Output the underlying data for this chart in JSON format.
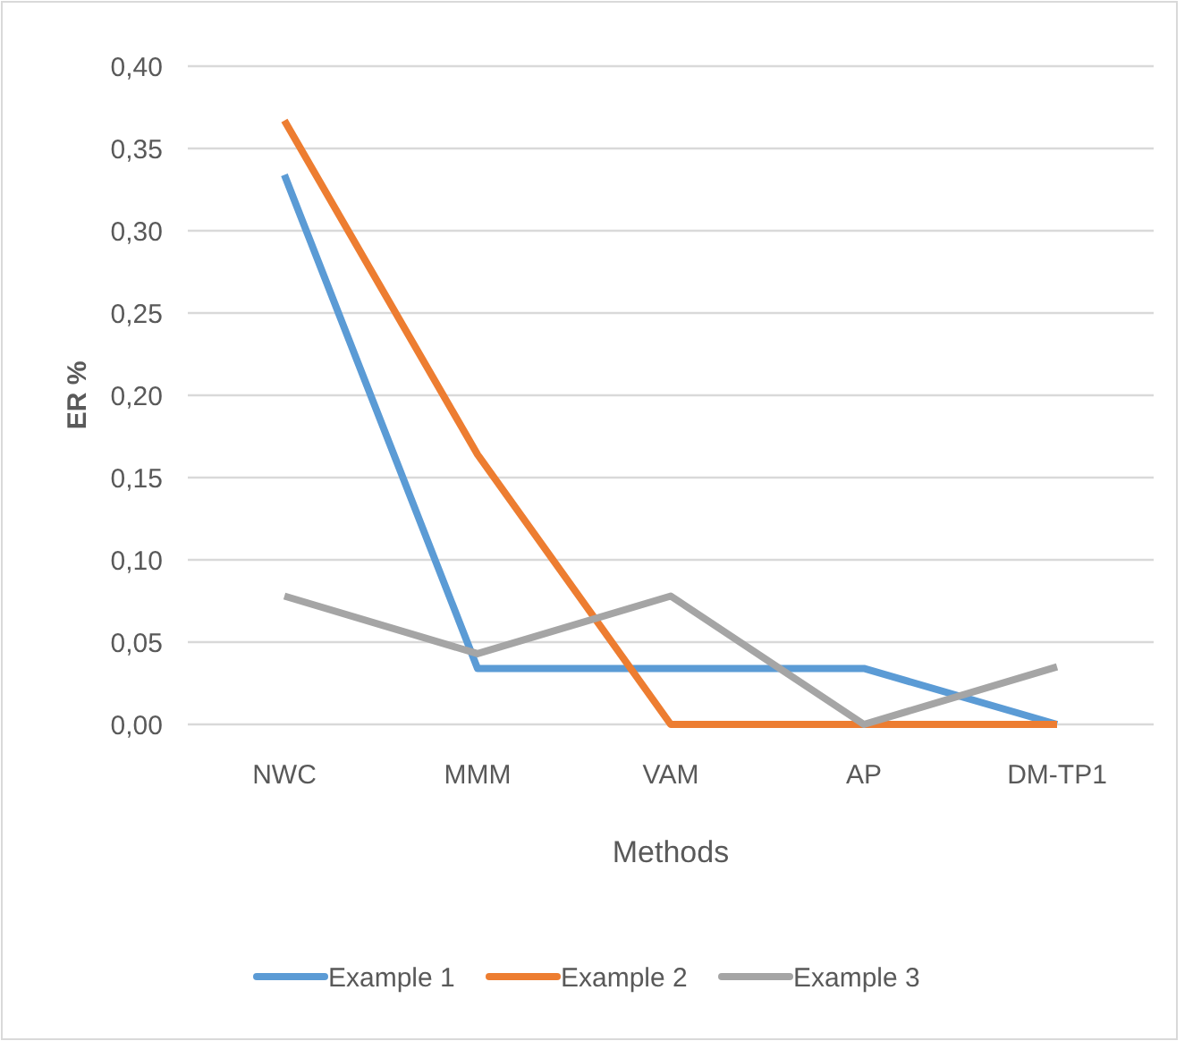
{
  "chart_data": {
    "type": "line",
    "xlabel": "Methods",
    "ylabel": "ER %",
    "categories": [
      "NWC",
      "MMM",
      "VAM",
      "AP",
      "DM-TP1"
    ],
    "series": [
      {
        "name": "Example 1",
        "color": "#5b9bd5",
        "values": [
          0.334,
          0.034,
          0.034,
          0.034,
          0
        ]
      },
      {
        "name": "Example 2",
        "color": "#ed7d31",
        "values": [
          0.367,
          0.164,
          0,
          0,
          0
        ]
      },
      {
        "name": "Example 3",
        "color": "#a5a5a5",
        "values": [
          0.078,
          0.043,
          0.078,
          0,
          0.035
        ]
      }
    ],
    "ylim": [
      0,
      0.4
    ],
    "yticks": [
      {
        "value": 0,
        "label": "0,00"
      },
      {
        "value": 0.05,
        "label": "0,05"
      },
      {
        "value": 0.1,
        "label": "0,10"
      },
      {
        "value": 0.15,
        "label": "0,15"
      },
      {
        "value": 0.2,
        "label": "0,20"
      },
      {
        "value": 0.25,
        "label": "0,25"
      },
      {
        "value": 0.3,
        "label": "0,30"
      },
      {
        "value": 0.35,
        "label": "0,35"
      },
      {
        "value": 0.4,
        "label": "0,40"
      }
    ],
    "grid": "y",
    "legend": "bottom",
    "marker": "none",
    "line_style": "solid"
  }
}
